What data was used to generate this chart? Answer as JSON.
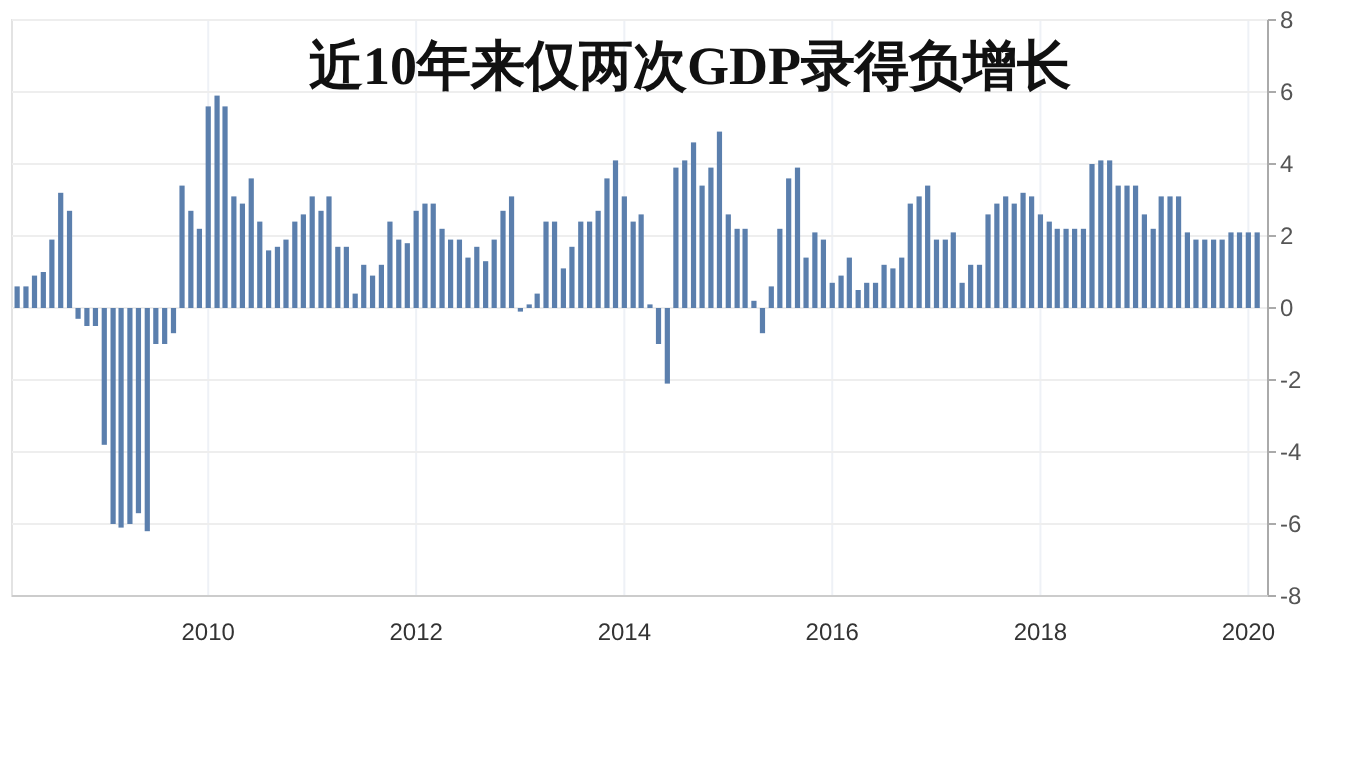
{
  "chart_data": {
    "type": "bar",
    "title": "近10年来仅两次GDP录得负增长",
    "x": [
      "2008-03",
      "2008-04",
      "2008-05",
      "2008-06",
      "2008-07",
      "2008-08",
      "2008-09",
      "2008-10",
      "2008-11",
      "2008-12",
      "2009-01",
      "2009-02",
      "2009-03",
      "2009-04",
      "2009-05",
      "2009-06",
      "2009-07",
      "2009-08",
      "2009-09",
      "2009-10",
      "2009-11",
      "2009-12",
      "2010-01",
      "2010-02",
      "2010-03",
      "2010-04",
      "2010-05",
      "2010-06",
      "2010-07",
      "2010-08",
      "2010-09",
      "2010-10",
      "2010-11",
      "2010-12",
      "2011-01",
      "2011-02",
      "2011-03",
      "2011-04",
      "2011-05",
      "2011-06",
      "2011-07",
      "2011-08",
      "2011-09",
      "2011-10",
      "2011-11",
      "2011-12",
      "2012-01",
      "2012-02",
      "2012-03",
      "2012-04",
      "2012-05",
      "2012-06",
      "2012-07",
      "2012-08",
      "2012-09",
      "2012-10",
      "2012-11",
      "2012-12",
      "2013-01",
      "2013-02",
      "2013-03",
      "2013-04",
      "2013-05",
      "2013-06",
      "2013-07",
      "2013-08",
      "2013-09",
      "2013-10",
      "2013-11",
      "2013-12",
      "2014-01",
      "2014-02",
      "2014-03",
      "2014-04",
      "2014-05",
      "2014-06",
      "2014-07",
      "2014-08",
      "2014-09",
      "2014-10",
      "2014-11",
      "2014-12",
      "2015-01",
      "2015-02",
      "2015-03",
      "2015-04",
      "2015-05",
      "2015-06",
      "2015-07",
      "2015-08",
      "2015-09",
      "2015-10",
      "2015-11",
      "2015-12",
      "2016-01",
      "2016-02",
      "2016-03",
      "2016-04",
      "2016-05",
      "2016-06",
      "2016-07",
      "2016-08",
      "2016-09",
      "2016-10",
      "2016-11",
      "2016-12",
      "2017-01",
      "2017-02",
      "2017-03",
      "2017-04",
      "2017-05",
      "2017-06",
      "2017-07",
      "2017-08",
      "2017-09",
      "2017-10",
      "2017-11",
      "2017-12",
      "2018-01",
      "2018-02",
      "2018-03",
      "2018-04",
      "2018-05",
      "2018-06",
      "2018-07",
      "2018-08",
      "2018-09",
      "2018-10",
      "2018-11",
      "2018-12",
      "2019-01",
      "2019-02",
      "2019-03",
      "2019-04",
      "2019-05",
      "2019-06",
      "2019-07",
      "2019-08",
      "2019-09",
      "2019-10",
      "2019-11",
      "2019-12",
      "2020-01",
      "2020-02"
    ],
    "values": [
      0.6,
      0.6,
      0.9,
      1.0,
      1.9,
      3.2,
      2.7,
      -0.3,
      -0.5,
      -0.5,
      -3.8,
      -6.0,
      -6.1,
      -6.0,
      -5.7,
      -6.2,
      -1.0,
      -1.0,
      -0.7,
      3.4,
      2.7,
      2.2,
      5.6,
      5.9,
      5.6,
      3.1,
      2.9,
      3.6,
      2.4,
      1.6,
      1.7,
      1.9,
      2.4,
      2.6,
      3.1,
      2.7,
      3.1,
      1.7,
      1.7,
      0.4,
      1.2,
      0.9,
      1.2,
      2.4,
      1.9,
      1.8,
      2.7,
      2.9,
      2.9,
      2.2,
      1.9,
      1.9,
      1.4,
      1.7,
      1.3,
      1.9,
      2.7,
      3.1,
      -0.1,
      0.1,
      0.4,
      2.4,
      2.4,
      1.1,
      1.7,
      2.4,
      2.4,
      2.7,
      3.6,
      4.1,
      3.1,
      2.4,
      2.6,
      0.1,
      -1.0,
      -2.1,
      3.9,
      4.1,
      4.6,
      3.4,
      3.9,
      4.9,
      2.6,
      2.2,
      2.2,
      0.2,
      -0.7,
      0.6,
      2.2,
      3.6,
      3.9,
      1.4,
      2.1,
      1.9,
      0.7,
      0.9,
      1.4,
      0.5,
      0.7,
      0.7,
      1.2,
      1.1,
      1.4,
      2.9,
      3.1,
      3.4,
      1.9,
      1.9,
      2.1,
      0.7,
      1.2,
      1.2,
      2.6,
      2.9,
      3.1,
      2.9,
      3.2,
      3.1,
      2.6,
      2.4,
      2.2,
      2.2,
      2.2,
      2.2,
      4.0,
      4.1,
      4.1,
      3.4,
      3.4,
      3.4,
      2.6,
      2.2,
      3.1,
      3.1,
      3.1,
      2.1,
      1.9,
      1.9,
      1.9,
      1.9,
      2.1,
      2.1,
      2.1,
      2.1
    ],
    "color": "#5b7fad",
    "xlim": [
      "2008-02-12",
      "2020-03-10"
    ],
    "xticks": [
      "2010",
      "2012",
      "2014",
      "2016",
      "2018",
      "2020"
    ],
    "ylim": [
      -8,
      8
    ],
    "yticks": [
      -8,
      -6,
      -4,
      -2,
      0,
      2,
      4,
      6,
      8
    ],
    "grid": true
  }
}
